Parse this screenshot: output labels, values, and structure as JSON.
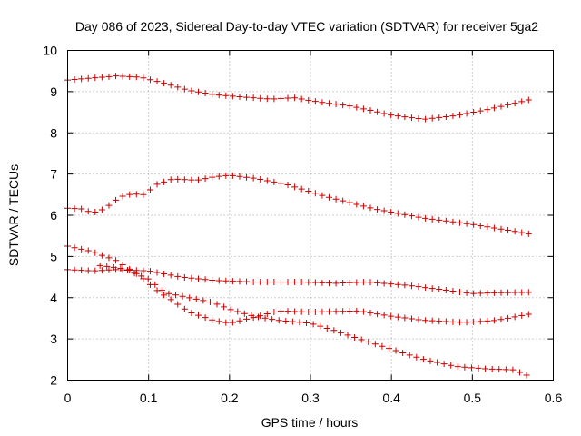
{
  "chart_data": {
    "type": "scatter",
    "title": "Day 086 of 2023, Sidereal Day-to-day VTEC variation (SDTVAR) for receiver 5ga2",
    "xlabel": "GPS time / hours",
    "ylabel": "SDTVAR / TECUs",
    "xlim": [
      0,
      0.6
    ],
    "ylim": [
      2,
      10
    ],
    "xticks": [
      "0",
      "0.1",
      "0.2",
      "0.3",
      "0.4",
      "0.5",
      "0.6"
    ],
    "yticks": [
      "2",
      "3",
      "4",
      "5",
      "6",
      "7",
      "8",
      "9",
      "10"
    ],
    "grid": true,
    "marker": "plus",
    "color": "#cc0000",
    "series": [
      {
        "name": "series-1",
        "anchors": [
          [
            0.0,
            9.28
          ],
          [
            0.03,
            9.33
          ],
          [
            0.06,
            9.38
          ],
          [
            0.09,
            9.35
          ],
          [
            0.12,
            9.2
          ],
          [
            0.15,
            9.03
          ],
          [
            0.18,
            8.93
          ],
          [
            0.21,
            8.88
          ],
          [
            0.25,
            8.82
          ],
          [
            0.28,
            8.85
          ],
          [
            0.31,
            8.75
          ],
          [
            0.35,
            8.65
          ],
          [
            0.4,
            8.43
          ],
          [
            0.44,
            8.33
          ],
          [
            0.48,
            8.42
          ],
          [
            0.52,
            8.57
          ],
          [
            0.57,
            8.8
          ]
        ]
      },
      {
        "name": "series-2",
        "anchors": [
          [
            0.0,
            6.17
          ],
          [
            0.02,
            6.15
          ],
          [
            0.03,
            6.05
          ],
          [
            0.045,
            6.15
          ],
          [
            0.065,
            6.45
          ],
          [
            0.08,
            6.52
          ],
          [
            0.095,
            6.5
          ],
          [
            0.11,
            6.75
          ],
          [
            0.13,
            6.88
          ],
          [
            0.16,
            6.85
          ],
          [
            0.18,
            6.93
          ],
          [
            0.2,
            6.97
          ],
          [
            0.23,
            6.9
          ],
          [
            0.27,
            6.75
          ],
          [
            0.32,
            6.45
          ],
          [
            0.38,
            6.15
          ],
          [
            0.44,
            5.93
          ],
          [
            0.5,
            5.78
          ],
          [
            0.57,
            5.55
          ]
        ]
      },
      {
        "name": "series-3",
        "anchors": [
          [
            0.0,
            5.25
          ],
          [
            0.03,
            5.12
          ],
          [
            0.06,
            4.9
          ],
          [
            0.09,
            4.52
          ],
          [
            0.11,
            4.18
          ],
          [
            0.13,
            3.92
          ],
          [
            0.15,
            3.65
          ],
          [
            0.18,
            3.45
          ],
          [
            0.2,
            3.38
          ],
          [
            0.23,
            3.52
          ],
          [
            0.26,
            3.68
          ],
          [
            0.3,
            3.65
          ],
          [
            0.36,
            3.68
          ],
          [
            0.4,
            3.55
          ],
          [
            0.44,
            3.45
          ],
          [
            0.49,
            3.4
          ],
          [
            0.53,
            3.45
          ],
          [
            0.57,
            3.6
          ]
        ]
      },
      {
        "name": "series-4",
        "anchors": [
          [
            0.0,
            4.68
          ],
          [
            0.03,
            4.65
          ],
          [
            0.06,
            4.68
          ],
          [
            0.1,
            4.65
          ],
          [
            0.14,
            4.5
          ],
          [
            0.18,
            4.42
          ],
          [
            0.23,
            4.38
          ],
          [
            0.29,
            4.38
          ],
          [
            0.33,
            4.35
          ],
          [
            0.37,
            4.38
          ],
          [
            0.42,
            4.3
          ],
          [
            0.46,
            4.2
          ],
          [
            0.5,
            4.1
          ],
          [
            0.53,
            4.12
          ],
          [
            0.57,
            4.13
          ]
        ]
      },
      {
        "name": "series-5",
        "anchors": [
          [
            0.04,
            4.78
          ],
          [
            0.07,
            4.7
          ],
          [
            0.1,
            4.45
          ],
          [
            0.12,
            4.12
          ],
          [
            0.15,
            4.0
          ],
          [
            0.18,
            3.88
          ],
          [
            0.2,
            3.72
          ],
          [
            0.23,
            3.55
          ],
          [
            0.26,
            3.45
          ],
          [
            0.3,
            3.38
          ],
          [
            0.33,
            3.2
          ],
          [
            0.36,
            3.0
          ],
          [
            0.4,
            2.75
          ],
          [
            0.44,
            2.5
          ],
          [
            0.48,
            2.33
          ],
          [
            0.52,
            2.27
          ],
          [
            0.55,
            2.25
          ],
          [
            0.57,
            2.1
          ]
        ]
      }
    ]
  }
}
